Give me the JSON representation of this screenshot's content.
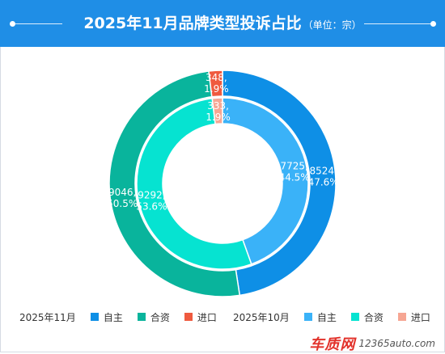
{
  "header": {
    "title": "2025年11月品牌类型投诉占比",
    "unit": "（单位：宗）"
  },
  "colors": {
    "header_bg": "#1f8ee6",
    "nov_zizhu": "#0e8fe6",
    "nov_hezi": "#09b49c",
    "nov_jinkou": "#ef5a3f",
    "oct_zizhu": "#3ab2f8",
    "oct_hezi": "#06e3d1",
    "oct_jinkou": "#f6a693"
  },
  "chart_data": {
    "type": "pie",
    "series": [
      {
        "name": "2025年11月",
        "ring": "outer",
        "labels": [
          "自主",
          "合资",
          "进口"
        ],
        "values": [
          8524,
          9046,
          348
        ],
        "percents": [
          "47.6%",
          "50.5%",
          "1.9%"
        ],
        "value_labels": [
          "8524,",
          "9046,",
          "348,"
        ],
        "colors": [
          "#0e8fe6",
          "#09b49c",
          "#ef5a3f"
        ]
      },
      {
        "name": "2025年10月",
        "ring": "inner",
        "labels": [
          "自主",
          "合资",
          "进口"
        ],
        "values": [
          7725,
          9292,
          333
        ],
        "percents": [
          "44.5%",
          "53.6%",
          "1.9%"
        ],
        "value_labels": [
          "7725,",
          "9292,",
          "333,"
        ],
        "colors": [
          "#3ab2f8",
          "#06e3d1",
          "#f6a693"
        ]
      }
    ]
  },
  "legend": {
    "nov": {
      "title": "2025年11月",
      "items": [
        {
          "label": "自主",
          "color": "#0e8fe6"
        },
        {
          "label": "合资",
          "color": "#09b49c"
        },
        {
          "label": "进口",
          "color": "#ef5a3f"
        }
      ]
    },
    "oct": {
      "title": "2025年10月",
      "items": [
        {
          "label": "自主",
          "color": "#3ab2f8"
        },
        {
          "label": "合资",
          "color": "#06e3d1"
        },
        {
          "label": "进口",
          "color": "#f6a693"
        }
      ]
    }
  },
  "watermark": {
    "brand": "车质网",
    "url": "12365auto.com"
  }
}
